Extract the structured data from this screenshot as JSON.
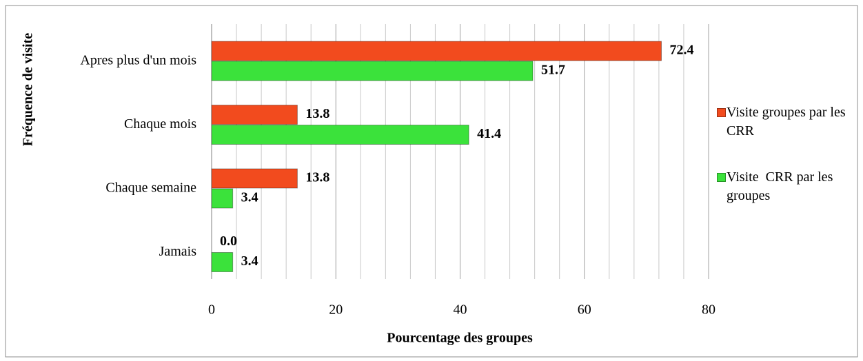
{
  "chart_data": {
    "type": "bar",
    "orientation": "horizontal",
    "y_axis_label": "Fréquence de visite",
    "x_axis_label": "Pourcentage des groupes",
    "categories": [
      "Apres plus d'un mois",
      "Chaque mois",
      "Chaque semaine",
      "Jamais"
    ],
    "series": [
      {
        "name": "Visite groupes par les CRR",
        "color": "#f24b1e",
        "values": [
          72.4,
          13.8,
          13.8,
          0.0
        ],
        "value_labels": [
          "72.4",
          "13.8",
          "13.8",
          "0.0"
        ]
      },
      {
        "name": "Visite  CRR par les groupes",
        "color": "#3be23b",
        "values": [
          51.7,
          41.4,
          3.4,
          3.4
        ],
        "value_labels": [
          "51.7",
          "41.4",
          "3.4",
          "3.4"
        ]
      }
    ],
    "xlim": [
      0,
      80
    ],
    "xticks": [
      0,
      20,
      40,
      60,
      80
    ],
    "xminorticks": [
      4,
      8,
      12,
      16,
      24,
      28,
      32,
      36,
      44,
      48,
      52,
      56,
      64,
      68,
      72,
      76
    ],
    "grid": true,
    "legend": "right"
  }
}
